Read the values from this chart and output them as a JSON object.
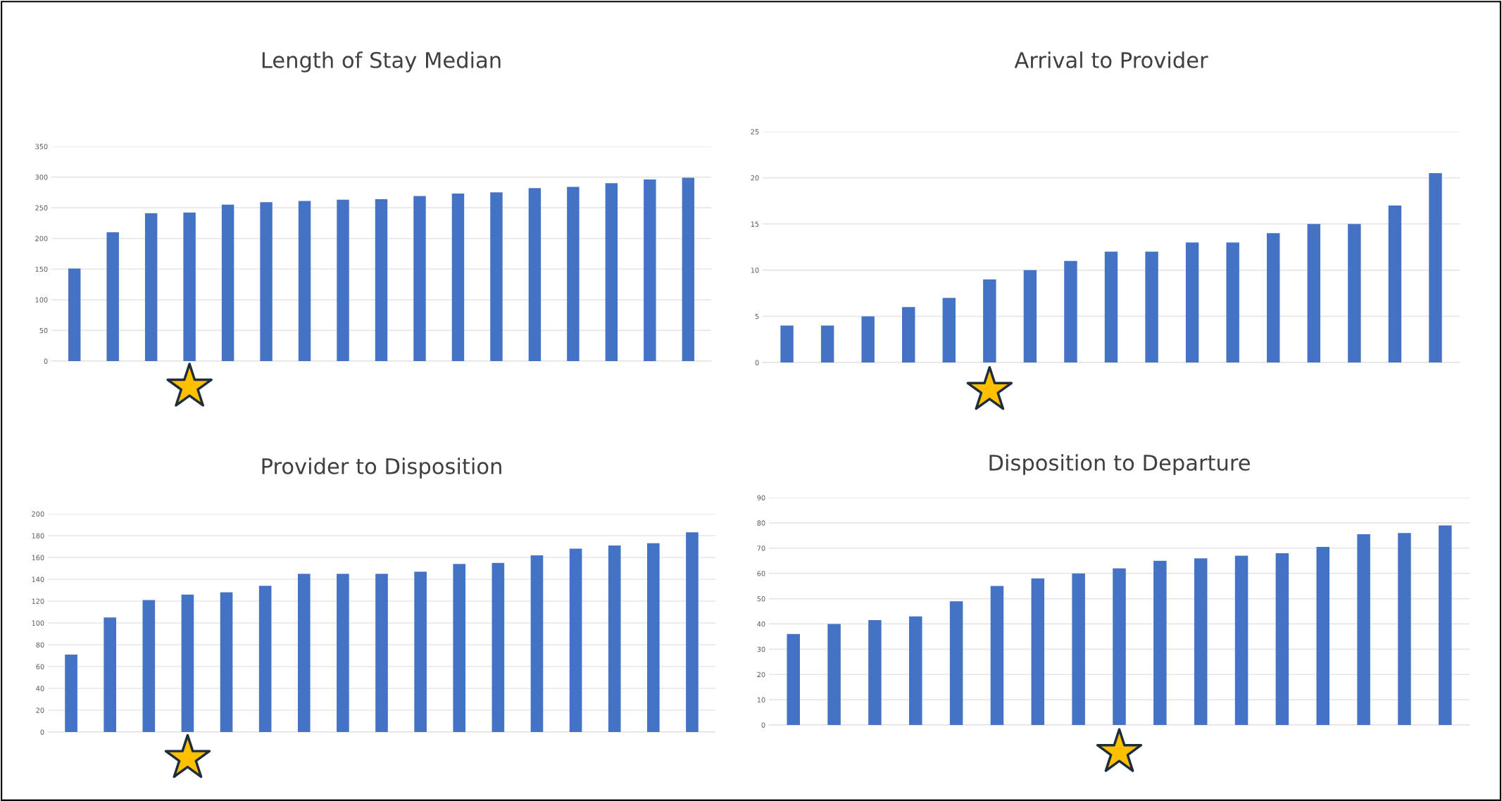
{
  "chart_data": [
    {
      "type": "bar",
      "title": "Length of Stay Median",
      "categories": [
        null,
        null,
        null,
        null,
        null,
        null,
        null,
        null,
        null,
        null,
        null,
        null,
        null,
        null,
        null,
        null,
        null
      ],
      "values": [
        151,
        210,
        241,
        242,
        255,
        259,
        261,
        263,
        264,
        269,
        273,
        275,
        282,
        284,
        290,
        296,
        299
      ],
      "color": "#4472c4",
      "ylim": [
        0,
        350
      ],
      "yticks": [
        0,
        50,
        100,
        150,
        200,
        250,
        300,
        350
      ],
      "grid": "y"
    },
    {
      "type": "bar",
      "title": "Arrival to Provider",
      "categories": [
        null,
        null,
        null,
        null,
        null,
        null,
        null,
        null,
        null,
        null,
        null,
        null,
        null,
        null,
        null,
        null,
        null
      ],
      "values": [
        4,
        4,
        5,
        6,
        7,
        9,
        10,
        11,
        12,
        12,
        13,
        13,
        14,
        15,
        15,
        17,
        20.5
      ],
      "color": "#4472c4",
      "ylim": [
        0,
        25
      ],
      "yticks": [
        0,
        5,
        10,
        15,
        20,
        25
      ],
      "grid": "y"
    },
    {
      "type": "bar",
      "title": "Provider to Disposition",
      "categories": [
        null,
        null,
        null,
        null,
        null,
        null,
        null,
        null,
        null,
        null,
        null,
        null,
        null,
        null,
        null,
        null,
        null
      ],
      "values": [
        71,
        105,
        121,
        126,
        128,
        134,
        145,
        145,
        145,
        147,
        154,
        155,
        162,
        168,
        171,
        173,
        183
      ],
      "color": "#4472c4",
      "ylim": [
        0,
        200
      ],
      "yticks": [
        0,
        20,
        40,
        60,
        80,
        100,
        120,
        140,
        160,
        180,
        200
      ],
      "grid": "y"
    },
    {
      "type": "bar",
      "title": "Disposition to Departure",
      "categories": [
        null,
        null,
        null,
        null,
        null,
        null,
        null,
        null,
        null,
        null,
        null,
        null,
        null,
        null,
        null,
        null,
        null
      ],
      "values": [
        36,
        40,
        41.5,
        43,
        49,
        55,
        58,
        60,
        62,
        65,
        66,
        67,
        68,
        70.5,
        75.5,
        76,
        79
      ],
      "color": "#4472c4",
      "ylim": [
        0,
        90
      ],
      "yticks": [
        0,
        10,
        20,
        30,
        40,
        50,
        60,
        70,
        80,
        90
      ],
      "grid": "y"
    }
  ]
}
